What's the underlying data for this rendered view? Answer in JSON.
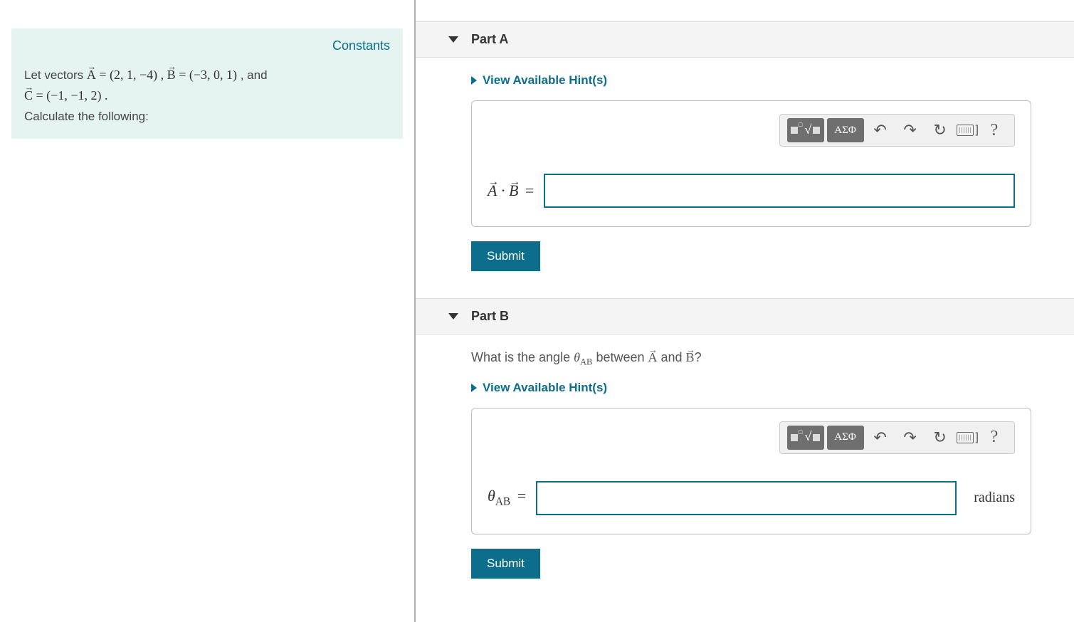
{
  "left": {
    "constants_label": "Constants",
    "line1_prefix": "Let vectors ",
    "vecA": "A",
    "A_val": " = (2, 1, −4)",
    "sep1": " , ",
    "vecB": "B",
    "B_val": " = (−3, 0, 1)",
    "sep2": " , and",
    "vecC": "C",
    "C_val": " = (−1, −1, 2)",
    "period": " .",
    "line3": "Calculate the following:"
  },
  "toolbar": {
    "greek_label": "ΑΣΦ",
    "undo": "↶",
    "redo": "↷",
    "reset": "↻",
    "kbd_bracket": "]",
    "help": "?"
  },
  "hints_label": "View Available Hint(s)",
  "submit_label": "Submit",
  "partA": {
    "title": "Part A",
    "label_A": "A",
    "dot": " · ",
    "label_B": "B",
    "eq": " ="
  },
  "partB": {
    "title": "Part B",
    "q_prefix": "What is the angle ",
    "theta": "θ",
    "theta_sub": "AB",
    "q_mid": " between ",
    "vecA": "A",
    "q_and": " and ",
    "vecB": "B",
    "q_suffix": "?",
    "label_theta": "θ",
    "label_sub": "AB",
    "eq": " =",
    "unit": "radians"
  },
  "colors": {
    "accent": "#0d6e8c",
    "problem_bg": "#e5f3f1"
  }
}
